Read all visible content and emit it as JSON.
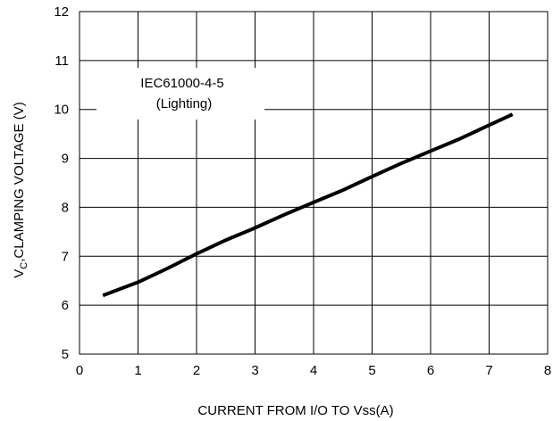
{
  "chart_data": {
    "type": "line",
    "title": "",
    "xlabel": "CURRENT FROM I/O TO Vss(A)",
    "ylabel_main": "V",
    "ylabel_sub": "C",
    "ylabel_rest": ",CLAMPING VOLTAGE (V)",
    "xlim": [
      0,
      8
    ],
    "ylim": [
      5,
      12
    ],
    "xticks": [
      "0",
      "1",
      "2",
      "3",
      "4",
      "5",
      "6",
      "7",
      "8"
    ],
    "yticks": [
      "5",
      "6",
      "7",
      "8",
      "9",
      "10",
      "11",
      "12"
    ],
    "grid": true,
    "annotation": [
      "IEC61000-4-5",
      "(Lighting)"
    ],
    "series": [
      {
        "x": [
          0.4,
          1.0,
          1.5,
          2.0,
          2.5,
          3.0,
          3.5,
          4.0,
          4.5,
          5.0,
          5.5,
          6.0,
          6.5,
          7.0,
          7.4
        ],
        "y": [
          6.2,
          6.47,
          6.75,
          7.05,
          7.33,
          7.58,
          7.85,
          8.1,
          8.35,
          8.63,
          8.9,
          9.15,
          9.4,
          9.68,
          9.9
        ]
      }
    ]
  }
}
